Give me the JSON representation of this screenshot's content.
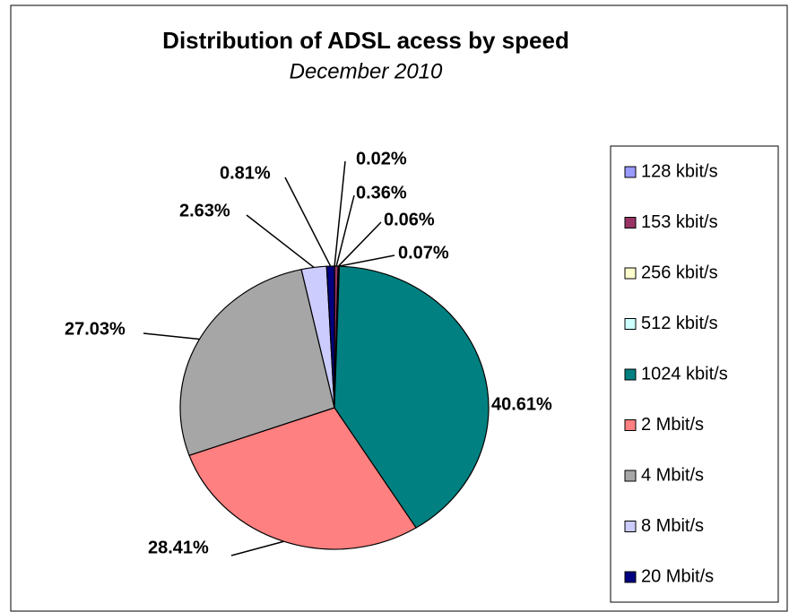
{
  "chart_data": {
    "type": "pie",
    "title": "Distribution of ADSL acess by speed",
    "subtitle": "December 2010",
    "categories": [
      "128 kbit/s",
      "153 kbit/s",
      "256 kbit/s",
      "512 kbit/s",
      "1024 kbit/s",
      "2 Mbit/s",
      "4 Mbit/s",
      "8 Mbit/s",
      "20 Mbit/s"
    ],
    "values": [
      0.02,
      0.36,
      0.06,
      0.07,
      40.61,
      28.41,
      27.03,
      2.63,
      0.81
    ],
    "value_labels": [
      "0.02%",
      "0.36%",
      "0.06%",
      "0.07%",
      "40.61%",
      "28.41%",
      "27.03%",
      "2.63%",
      "0.81%"
    ],
    "colors": [
      "#9999ff",
      "#993366",
      "#ffffcc",
      "#ccffff",
      "#008080",
      "#ff8080",
      "#a6a6a6",
      "#ccccff",
      "#000080"
    ],
    "legend": "right"
  }
}
